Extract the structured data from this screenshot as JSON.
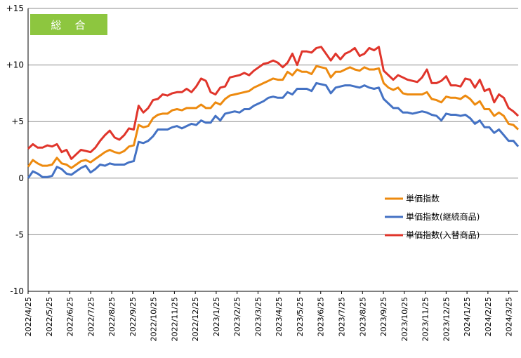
{
  "chart_data": {
    "type": "line",
    "title": "",
    "badge": "総　合",
    "ylim": [
      -10,
      15
    ],
    "y_ticks": [
      "+15",
      "+10",
      "+5",
      "0",
      "-5",
      "-10"
    ],
    "y_tick_values": [
      15,
      10,
      5,
      0,
      -5,
      -10
    ],
    "grid": "horizontal",
    "legend_position": "center-right",
    "x_tick_labels": [
      "2022/4/25",
      "2022/5/25",
      "2022/6/25",
      "2022/7/25",
      "2022/8/25",
      "2022/9/25",
      "2022/10/25",
      "2022/11/25",
      "2022/12/25",
      "2023/1/25",
      "2023/2/25",
      "2023/3/25",
      "2023/4/25",
      "2023/5/25",
      "2023/6/25",
      "2023/7/25",
      "2023/8/25",
      "2023/9/25",
      "2023/10/25",
      "2023/11/25",
      "2023/12/25",
      "2024/1/25",
      "2024/2/25",
      "2024/3/25"
    ],
    "series": [
      {
        "name": "単価指数",
        "color": "#ED8A0F",
        "values": [
          1.0,
          1.6,
          1.3,
          1.1,
          1.1,
          1.2,
          1.8,
          1.3,
          1.2,
          0.9,
          1.2,
          1.5,
          1.6,
          1.4,
          1.7,
          2.0,
          2.3,
          2.5,
          2.3,
          2.2,
          2.4,
          2.8,
          2.9,
          4.7,
          4.5,
          4.6,
          5.3,
          5.6,
          5.7,
          5.7,
          6.0,
          6.1,
          6.0,
          6.2,
          6.2,
          6.2,
          6.5,
          6.2,
          6.2,
          6.7,
          6.5,
          7.0,
          7.3,
          7.4,
          7.5,
          7.6,
          7.7,
          8.0,
          8.2,
          8.4,
          8.6,
          8.8,
          8.7,
          8.7,
          9.4,
          9.1,
          9.6,
          9.4,
          9.4,
          9.2,
          9.9,
          9.8,
          9.7,
          8.9,
          9.4,
          9.4,
          9.6,
          9.8,
          9.6,
          9.5,
          9.8,
          9.6,
          9.6,
          9.7,
          8.4,
          8.0,
          7.8,
          8.0,
          7.5,
          7.4,
          7.4,
          7.4,
          7.4,
          7.6,
          7.0,
          6.9,
          6.7,
          7.2,
          7.1,
          7.1,
          7.0,
          7.3,
          7.0,
          6.5,
          6.8,
          6.1,
          6.1,
          5.5,
          5.8,
          5.5,
          4.8,
          4.7,
          4.3
        ]
      },
      {
        "name": "単価指数(継続商品)",
        "color": "#4472C4",
        "values": [
          0.0,
          0.6,
          0.4,
          0.1,
          0.1,
          0.2,
          1.0,
          0.8,
          0.4,
          0.3,
          0.6,
          0.9,
          1.1,
          0.5,
          0.8,
          1.2,
          1.1,
          1.3,
          1.2,
          1.2,
          1.2,
          1.4,
          1.5,
          3.2,
          3.1,
          3.3,
          3.7,
          4.3,
          4.3,
          4.3,
          4.5,
          4.6,
          4.4,
          4.6,
          4.8,
          4.7,
          5.1,
          4.9,
          4.9,
          5.5,
          5.1,
          5.7,
          5.8,
          5.9,
          5.8,
          6.1,
          6.1,
          6.4,
          6.6,
          6.8,
          7.1,
          7.2,
          7.1,
          7.1,
          7.6,
          7.4,
          7.9,
          7.9,
          7.9,
          7.7,
          8.4,
          8.3,
          8.2,
          7.5,
          8.0,
          8.1,
          8.2,
          8.2,
          8.1,
          8.0,
          8.2,
          8.0,
          7.9,
          8.0,
          7.0,
          6.6,
          6.2,
          6.2,
          5.8,
          5.8,
          5.7,
          5.8,
          5.9,
          5.8,
          5.6,
          5.5,
          5.1,
          5.7,
          5.6,
          5.6,
          5.5,
          5.6,
          5.3,
          4.8,
          5.1,
          4.5,
          4.5,
          4.0,
          4.3,
          3.8,
          3.3,
          3.3,
          2.8
        ]
      },
      {
        "name": "単価指数(入替商品)",
        "color": "#E0352B",
        "values": [
          2.6,
          3.0,
          2.7,
          2.7,
          2.9,
          2.8,
          3.0,
          2.3,
          2.5,
          1.7,
          2.1,
          2.5,
          2.4,
          2.3,
          2.7,
          3.3,
          3.8,
          4.2,
          3.6,
          3.4,
          3.8,
          4.4,
          4.3,
          6.4,
          5.8,
          6.2,
          6.9,
          7.0,
          7.4,
          7.3,
          7.5,
          7.6,
          7.6,
          7.9,
          7.6,
          8.1,
          8.8,
          8.6,
          7.6,
          7.4,
          8.0,
          8.1,
          8.9,
          9.0,
          9.1,
          9.3,
          9.1,
          9.5,
          9.8,
          10.1,
          10.2,
          10.4,
          10.2,
          9.8,
          10.2,
          11.0,
          10.0,
          11.2,
          11.2,
          11.1,
          11.5,
          11.6,
          11.0,
          10.4,
          11.0,
          10.5,
          11.0,
          11.2,
          11.5,
          10.8,
          11.0,
          11.5,
          11.3,
          11.6,
          9.5,
          9.1,
          8.7,
          9.1,
          8.9,
          8.7,
          8.6,
          8.5,
          8.9,
          9.6,
          8.4,
          8.4,
          8.6,
          9.0,
          8.2,
          8.2,
          8.1,
          8.8,
          8.7,
          8.0,
          8.7,
          7.7,
          7.9,
          6.7,
          7.4,
          7.1,
          6.2,
          5.9,
          5.5
        ]
      }
    ]
  }
}
